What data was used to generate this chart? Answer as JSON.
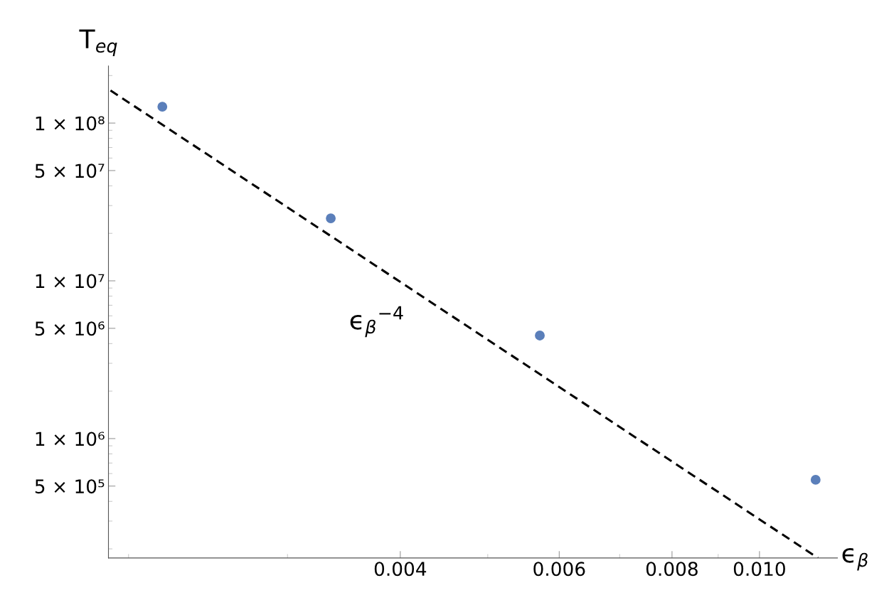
{
  "chart_data": {
    "type": "scatter",
    "xlabel": "ϵ$_{β}$",
    "ylabel": "T$_{eq}$",
    "log": "xy",
    "x": [
      0.00218,
      0.00335,
      0.00571,
      0.01154
    ],
    "series": [
      {
        "color": "#5b7fba",
        "values": [
          127000000.0,
          24900000.0,
          4500000.0,
          548000.0
        ],
        "marker": "circle"
      },
      {
        "type": "line",
        "color": "#000000",
        "x": [
          0.00191,
          0.01161
        ],
        "values": [
          161000000.0,
          175000.0
        ],
        "line_style": "dashed",
        "marker": "none"
      }
    ],
    "xlim": [
      0.0019,
      0.0122
    ],
    "ylim": [
      175000,
      230000000
    ],
    "xticks": [
      {
        "value": 0.004,
        "label": "0.004"
      },
      {
        "value": 0.006,
        "label": "0.006"
      },
      {
        "value": 0.008,
        "label": "0.008"
      },
      {
        "value": 0.01,
        "label": "0.010"
      }
    ],
    "yticks": [
      {
        "value": 500000,
        "label": "5 × 10⁵"
      },
      {
        "value": 1000000,
        "label": "1 × 10⁶"
      },
      {
        "value": 5000000,
        "label": "5 × 10⁶"
      },
      {
        "value": 10000000,
        "label": "1 × 10⁷"
      },
      {
        "value": 50000000,
        "label": "5 × 10⁷"
      },
      {
        "value": 100000000,
        "label": "1 × 10⁸"
      }
    ],
    "annotations": [
      "ϵ$_{β}$$^{−4}$"
    ],
    "grid": false
  }
}
